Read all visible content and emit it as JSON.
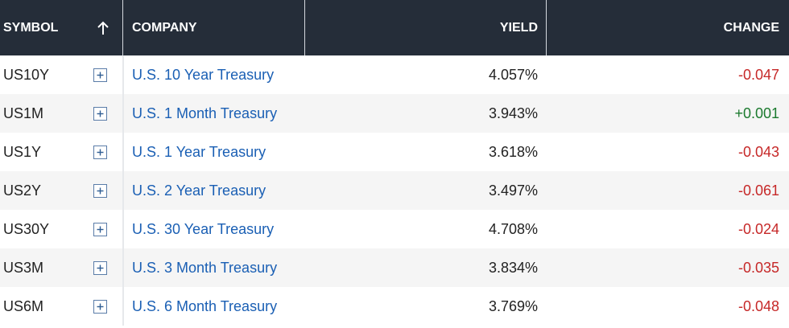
{
  "header": {
    "symbol": "SYMBOL",
    "company": "COMPANY",
    "yield": "YIELD",
    "change": "CHANGE",
    "sort_icon": "arrow-up-icon"
  },
  "colors": {
    "header_bg": "#252d39",
    "link": "#1a5fb4",
    "negative": "#c62828",
    "positive": "#1b7a2e"
  },
  "rows": [
    {
      "symbol": "US10Y",
      "company": "U.S. 10 Year Treasury",
      "yield": "4.057%",
      "change": "-0.047",
      "direction": "down"
    },
    {
      "symbol": "US1M",
      "company": "U.S. 1 Month Treasury",
      "yield": "3.943%",
      "change": "+0.001",
      "direction": "up"
    },
    {
      "symbol": "US1Y",
      "company": "U.S. 1 Year Treasury",
      "yield": "3.618%",
      "change": "-0.043",
      "direction": "down"
    },
    {
      "symbol": "US2Y",
      "company": "U.S. 2 Year Treasury",
      "yield": "3.497%",
      "change": "-0.061",
      "direction": "down"
    },
    {
      "symbol": "US30Y",
      "company": "U.S. 30 Year Treasury",
      "yield": "4.708%",
      "change": "-0.024",
      "direction": "down"
    },
    {
      "symbol": "US3M",
      "company": "U.S. 3 Month Treasury",
      "yield": "3.834%",
      "change": "-0.035",
      "direction": "down"
    },
    {
      "symbol": "US6M",
      "company": "U.S. 6 Month Treasury",
      "yield": "3.769%",
      "change": "-0.048",
      "direction": "down"
    }
  ]
}
